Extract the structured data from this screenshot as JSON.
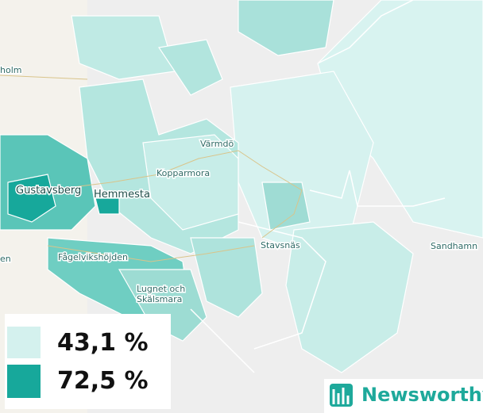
{
  "places": [
    {
      "label": "holm"
    },
    {
      "label": "Gustavsberg"
    },
    {
      "label": "Hemmesta"
    },
    {
      "label": "Värmdö"
    },
    {
      "label": "Kopparmora"
    },
    {
      "label": "Stavsnäs"
    },
    {
      "label": "Sandhamn"
    },
    {
      "label": "Fågelvikshöjden"
    },
    {
      "lines": [
        "Lugnet och",
        "Skälsmara"
      ]
    },
    {
      "label": "en"
    }
  ],
  "legend": [
    {
      "label": "43,1 %",
      "color": "#d4f1ee"
    },
    {
      "label": "72,5 %",
      "color": "#17a89b"
    }
  ],
  "logo": {
    "text": "Newsworthy"
  }
}
